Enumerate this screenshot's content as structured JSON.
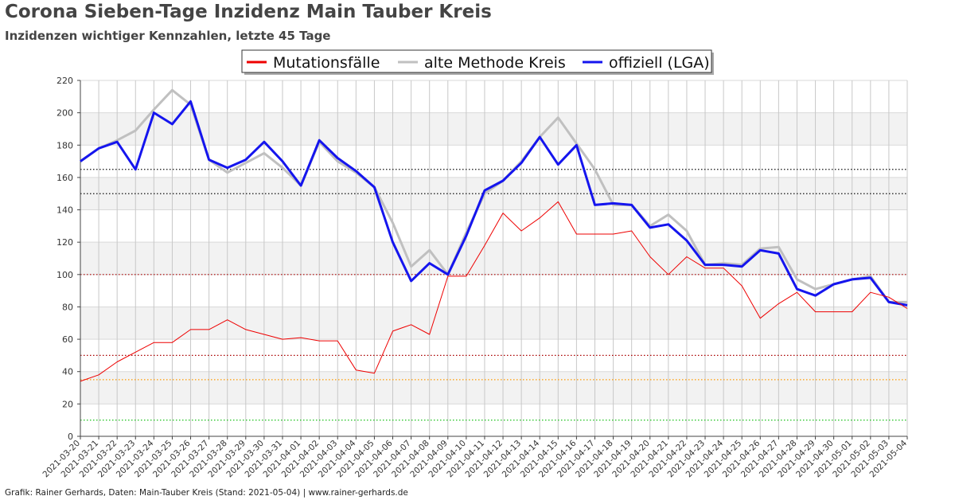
{
  "title": "Corona Sieben-Tage Inzidenz Main Tauber Kreis",
  "subtitle": "Inzidenzen wichtiger Kennzahlen, letzte 45 Tage",
  "footer": "Grafik: Rainer Gerhards, Daten: Main-Tauber Kreis (Stand: 2021-05-04) | www.rainer-gerhards.de",
  "chart_data": {
    "type": "line",
    "title": "Corona Sieben-Tage Inzidenz Main Tauber Kreis",
    "subtitle": "Inzidenzen wichtiger Kennzahlen, letzte 45 Tage",
    "xlabel": "",
    "ylabel": "",
    "ylim": [
      0,
      220
    ],
    "yticks": [
      0,
      20,
      40,
      60,
      80,
      100,
      120,
      140,
      160,
      180,
      200,
      220
    ],
    "grid": true,
    "legend_position": "top-center",
    "x": [
      "2021-03-20",
      "2021-03-21",
      "2021-03-22",
      "2021-03-23",
      "2021-03-24",
      "2021-03-25",
      "2021-03-26",
      "2021-03-27",
      "2021-03-28",
      "2021-03-29",
      "2021-03-30",
      "2021-03-31",
      "2021-04-01",
      "2021-04-02",
      "2021-04-03",
      "2021-04-04",
      "2021-04-05",
      "2021-04-06",
      "2021-04-07",
      "2021-04-08",
      "2021-04-09",
      "2021-04-10",
      "2021-04-11",
      "2021-04-12",
      "2021-04-13",
      "2021-04-14",
      "2021-04-15",
      "2021-04-16",
      "2021-04-17",
      "2021-04-18",
      "2021-04-19",
      "2021-04-20",
      "2021-04-21",
      "2021-04-22",
      "2021-04-23",
      "2021-04-24",
      "2021-04-25",
      "2021-04-26",
      "2021-04-27",
      "2021-04-28",
      "2021-04-29",
      "2021-04-30",
      "2021-05-01",
      "2021-05-02",
      "2021-05-03",
      "2021-05-04"
    ],
    "series": [
      {
        "name": "alte Methode Kreis",
        "color": "#c0c0c0",
        "values": [
          170,
          178,
          183,
          189,
          202,
          214,
          205,
          171,
          163,
          169,
          175,
          166,
          155,
          182,
          170,
          163,
          154,
          132,
          105,
          115,
          100,
          126,
          150,
          158,
          170,
          185,
          197,
          181,
          165,
          143,
          143,
          130,
          137,
          127,
          106,
          107,
          106,
          116,
          117,
          97,
          91,
          94,
          97,
          99,
          83,
          83
        ]
      },
      {
        "name": "offiziell (LGA)",
        "color": "#1515ee",
        "values": [
          170,
          178,
          182,
          165,
          200,
          193,
          207,
          171,
          166,
          171,
          182,
          170,
          155,
          183,
          172,
          164,
          154,
          120,
          96,
          107,
          100,
          124,
          152,
          158,
          169,
          185,
          168,
          180,
          143,
          144,
          143,
          129,
          131,
          121,
          106,
          106,
          105,
          115,
          113,
          91,
          87,
          94,
          97,
          98,
          83,
          81
        ]
      },
      {
        "name": "Mutationsfälle",
        "color": "#ee0000",
        "values": [
          34,
          38,
          46,
          52,
          58,
          58,
          66,
          66,
          72,
          66,
          63,
          60,
          61,
          59,
          59,
          41,
          39,
          65,
          69,
          63,
          99,
          99,
          118,
          138,
          127,
          135,
          145,
          125,
          125,
          125,
          127,
          111,
          100,
          111,
          104,
          104,
          93,
          73,
          82,
          89,
          77,
          77,
          77,
          89,
          86,
          79
        ]
      }
    ],
    "reference_lines": [
      {
        "value": 165,
        "color": "#111111"
      },
      {
        "value": 150,
        "color": "#111111"
      },
      {
        "value": 100,
        "color": "#aa0000"
      },
      {
        "value": 50,
        "color": "#aa0000"
      },
      {
        "value": 35,
        "color": "#ff9900"
      },
      {
        "value": 10,
        "color": "#00bb00"
      }
    ]
  }
}
